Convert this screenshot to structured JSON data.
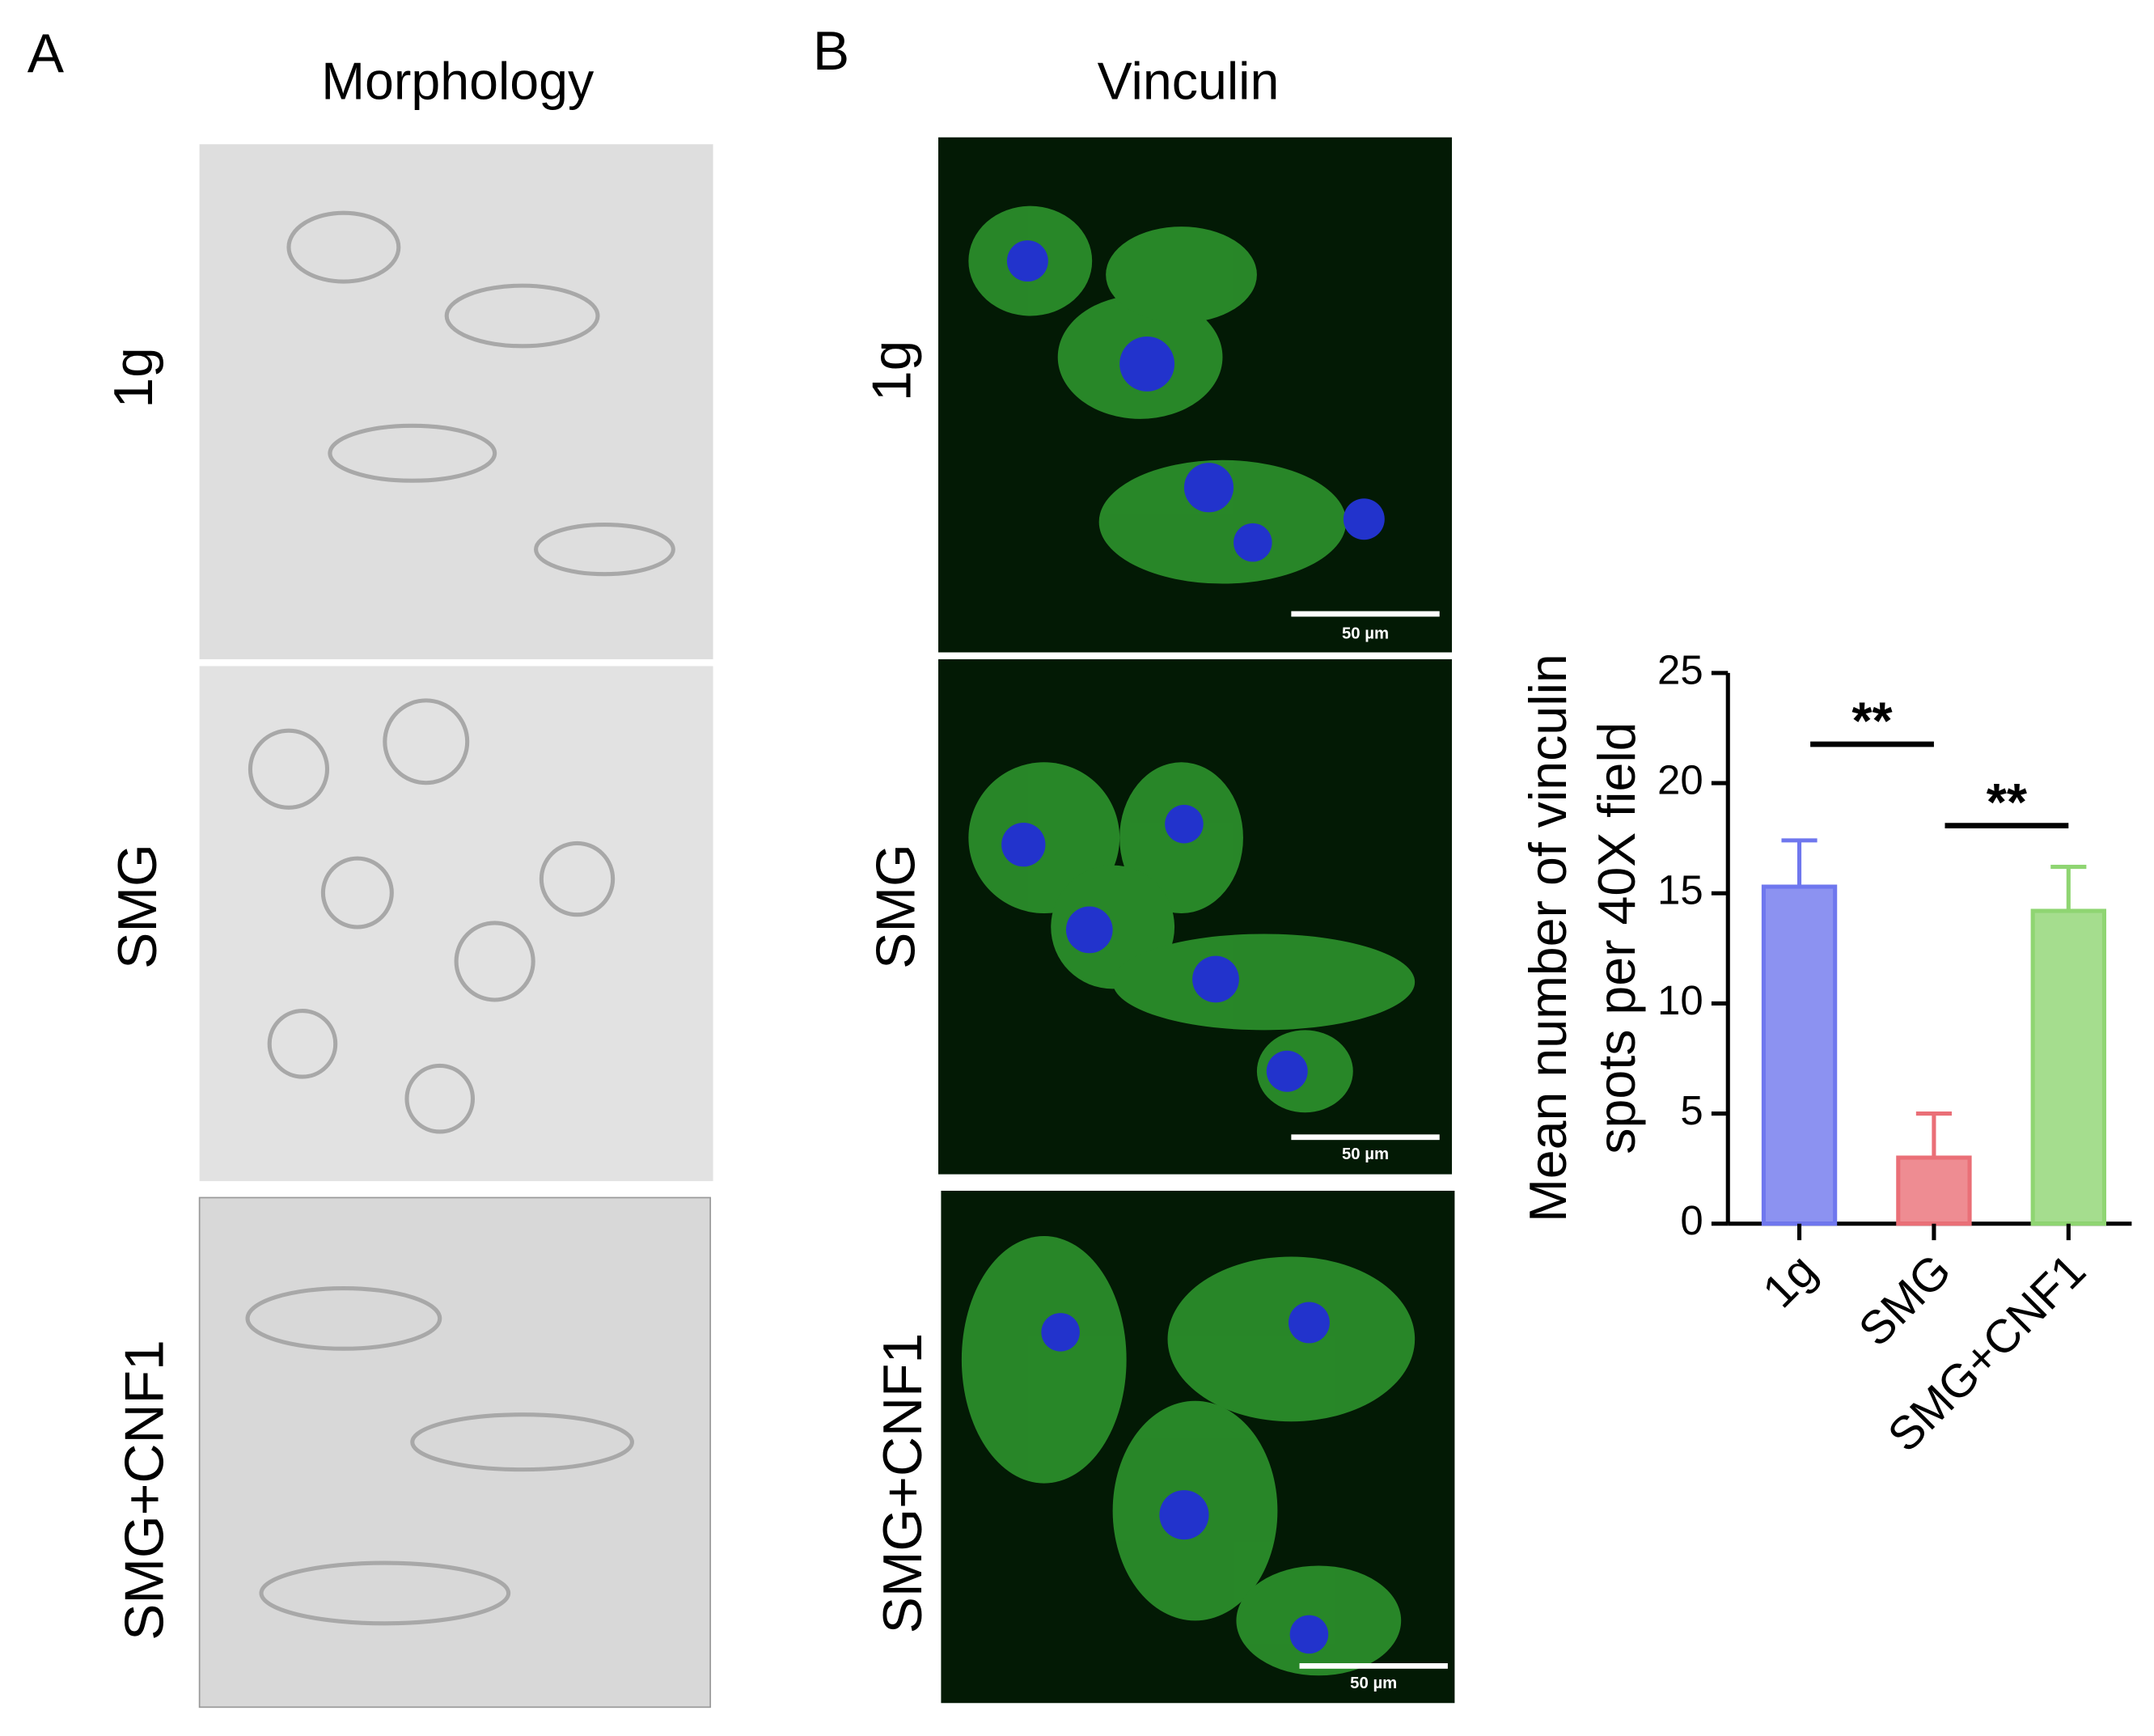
{
  "panels": {
    "A": {
      "label": "A",
      "title": "Morphology",
      "rows": [
        "1g",
        "SMG",
        "SMG+CNF1"
      ]
    },
    "B": {
      "label": "B",
      "title": "Vinculin",
      "rows": [
        "1g",
        "SMG",
        "SMG+CNF1"
      ],
      "scale_bar": "50 µm"
    }
  },
  "chart_data": {
    "type": "bar",
    "y_label": [
      "Mean number of vinculin",
      "spots per 40X field"
    ],
    "categories": [
      "1g",
      "SMG",
      "SMG+CNF1"
    ],
    "values": [
      15.3,
      3.0,
      14.2
    ],
    "errors": [
      2.1,
      2.0,
      2.0
    ],
    "colors": [
      "#6f77ee",
      "#ea6f77",
      "#8fd572"
    ],
    "ylim": [
      0,
      25
    ],
    "yticks": [
      0,
      5,
      10,
      15,
      20,
      25
    ],
    "annotations": [
      {
        "text": "**",
        "between": [
          0,
          1
        ]
      },
      {
        "text": "**",
        "between": [
          1,
          2
        ]
      }
    ]
  }
}
